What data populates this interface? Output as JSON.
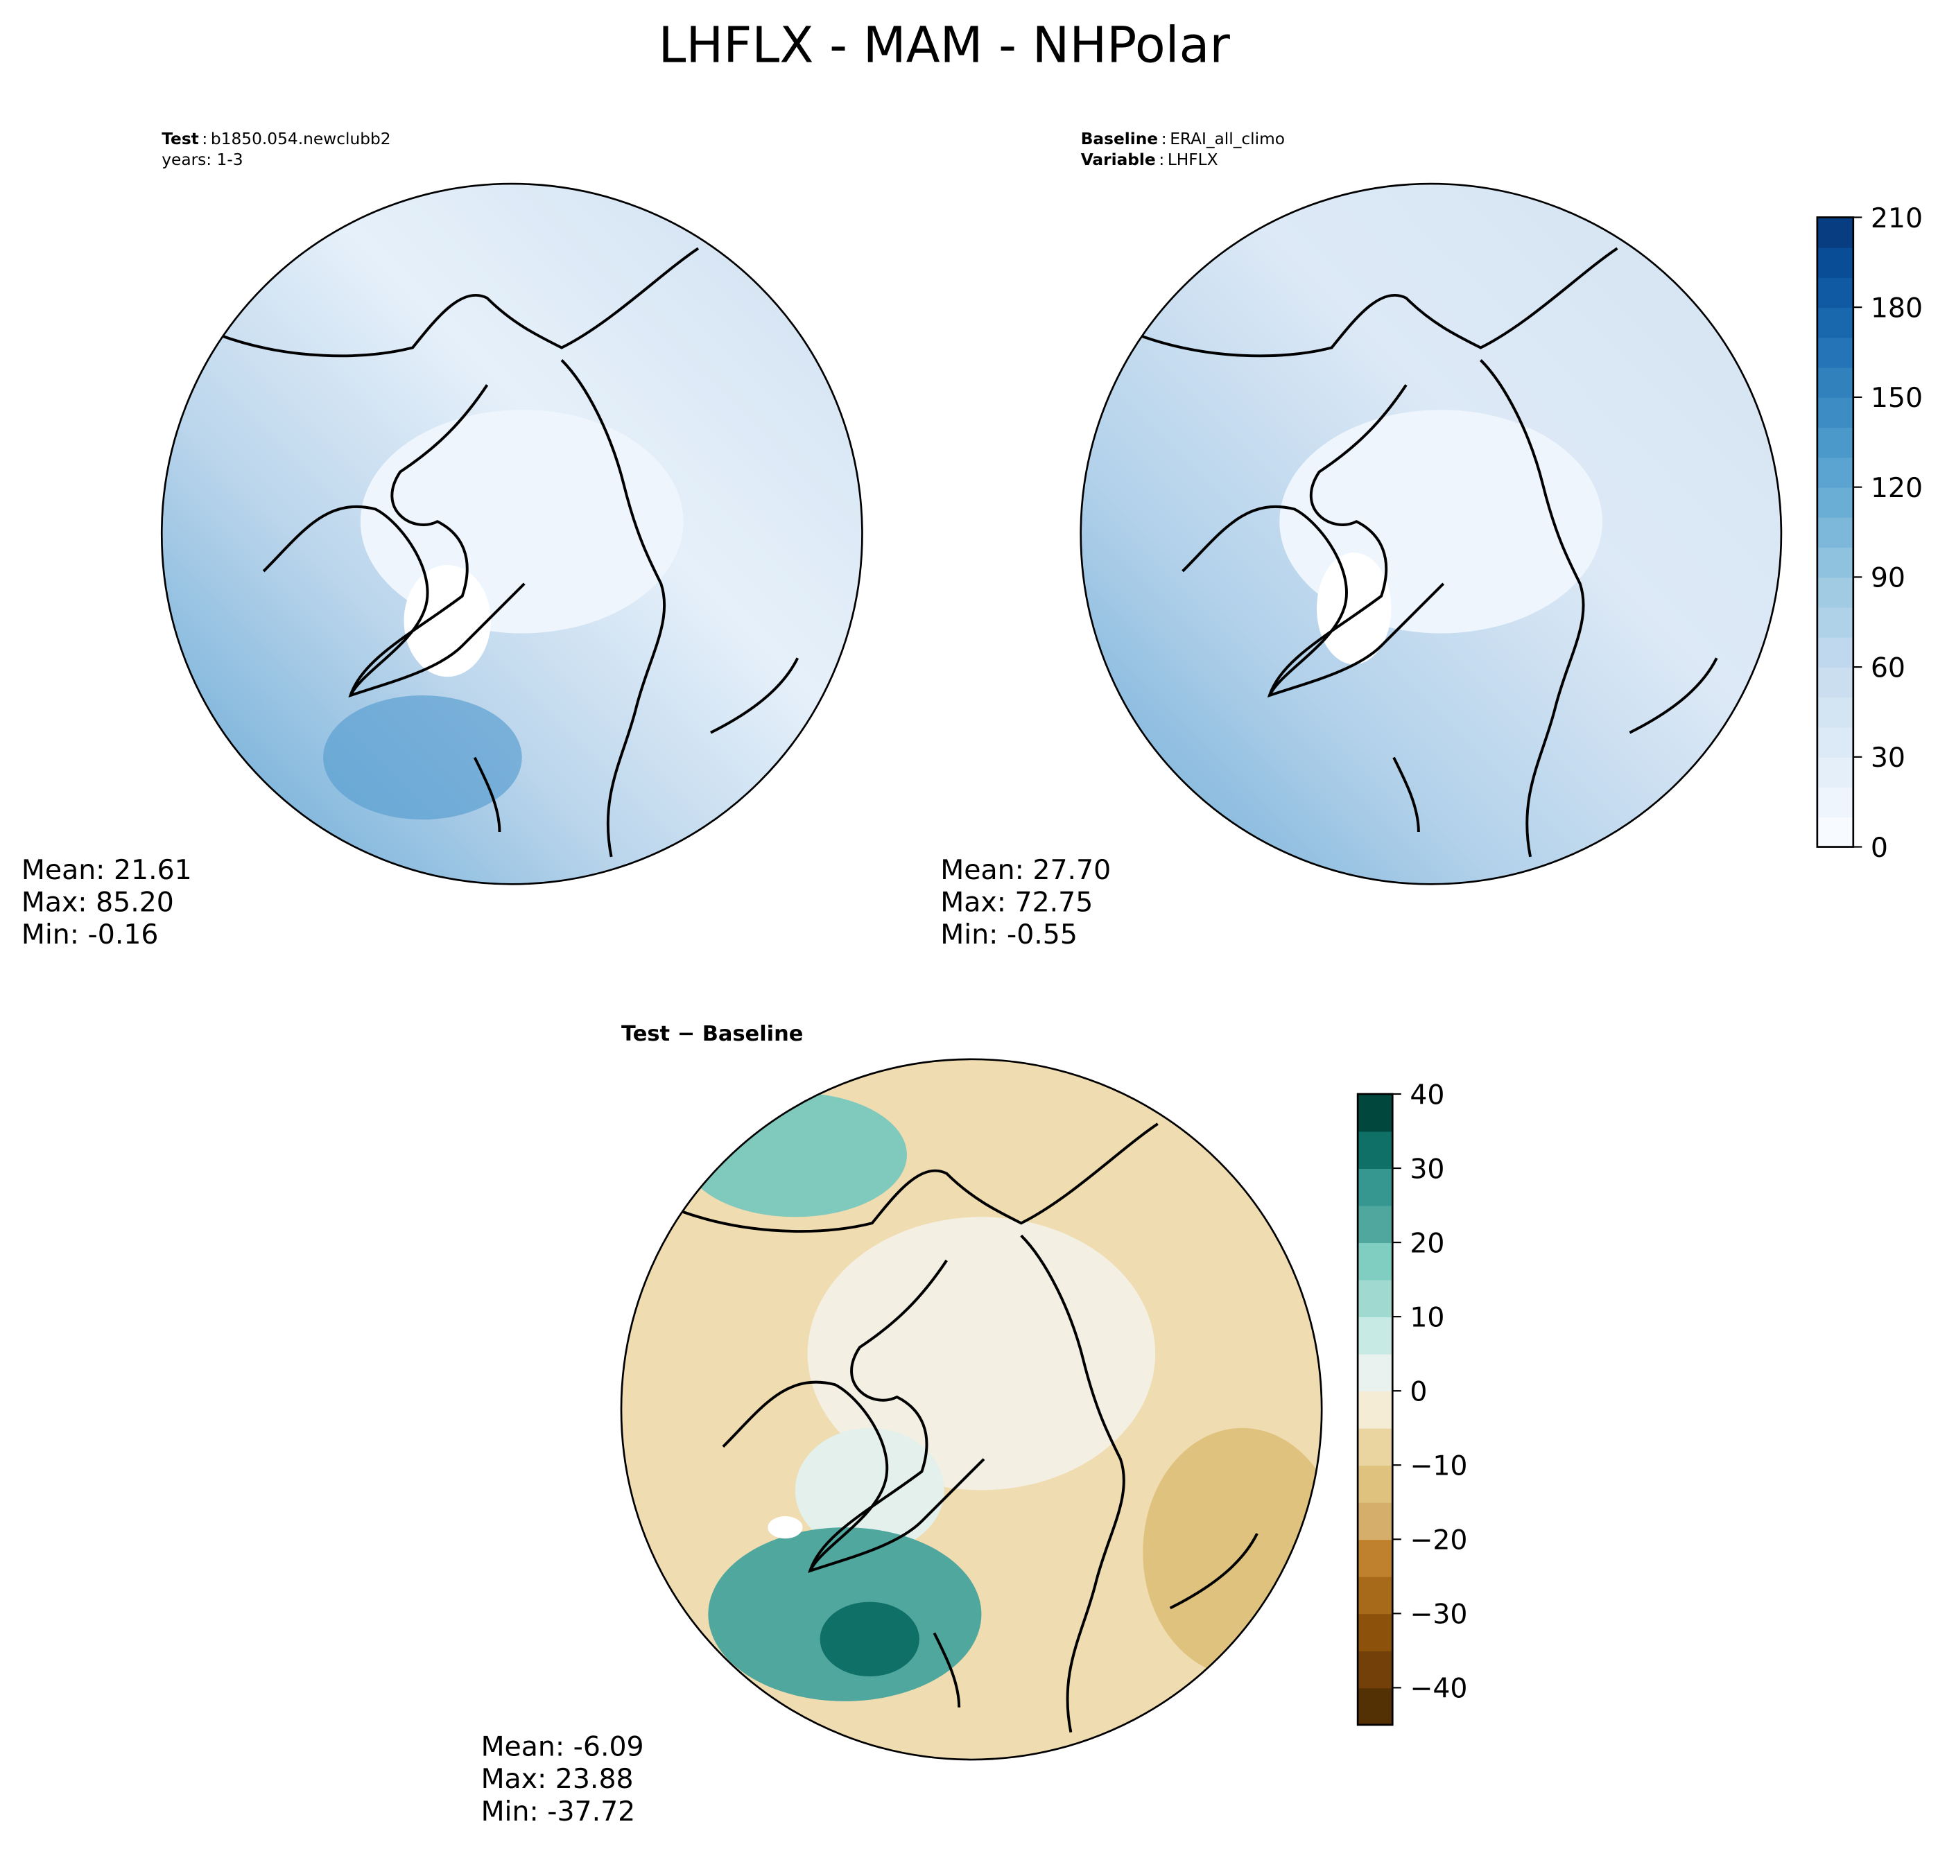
{
  "title": "LHFLX - MAM - NHPolar",
  "panels": [
    {
      "header": [
        {
          "key": "Test",
          "value": "b1850.054.newclubb2"
        },
        {
          "text": "years: 1-3"
        }
      ],
      "stats": [
        "Mean: 21.61",
        "Max: 85.20",
        "Min: -0.16"
      ]
    },
    {
      "header": [
        {
          "key": "Baseline",
          "value": "ERAI_all_climo"
        },
        {
          "key": "Variable",
          "value": "LHFLX"
        }
      ],
      "stats": [
        "Mean: 27.70",
        "Max: 72.75",
        "Min: -0.55"
      ]
    },
    {
      "header": [
        {
          "text": "Test − Baseline"
        }
      ],
      "stats": [
        "Mean: -6.09",
        "Max: 23.88",
        "Min: -37.72"
      ]
    }
  ],
  "colorbars": [
    {
      "lim": [
        0,
        210
      ],
      "ticks": [
        0,
        30,
        60,
        90,
        120,
        150,
        180,
        210
      ],
      "colors": [
        "#f7fbff",
        "#eef5fc",
        "#e5eff9",
        "#dce9f6",
        "#d3e4f3",
        "#cadef0",
        "#bfd8ed",
        "#b0d2e8",
        "#a1cbe2",
        "#8fc2de",
        "#7db8da",
        "#6aaed6",
        "#5ba3d0",
        "#4b98ca",
        "#3d8dc4",
        "#3181bd",
        "#2474b7",
        "#1967ad",
        "#0f5aa3",
        "#084d96",
        "#083e81"
      ]
    },
    {
      "lim": [
        -45,
        40
      ],
      "ticks": [
        {
          "value": -40,
          "label": "−40"
        },
        {
          "value": -30,
          "label": "−30"
        },
        {
          "value": -20,
          "label": "−20"
        },
        {
          "value": -10,
          "label": "−10"
        },
        0,
        10,
        20,
        30,
        40
      ],
      "colors": [
        "#543005",
        "#744009",
        "#8c510a",
        "#a7691a",
        "#bf812d",
        "#d4ae6a",
        "#dfc27d",
        "#ead5a0",
        "#f5ecd6",
        "#e9f2ef",
        "#c7eae5",
        "#a0d9cf",
        "#80cdc1",
        "#4fa79e",
        "#35978f",
        "#0f7068",
        "#01473d"
      ]
    }
  ]
}
